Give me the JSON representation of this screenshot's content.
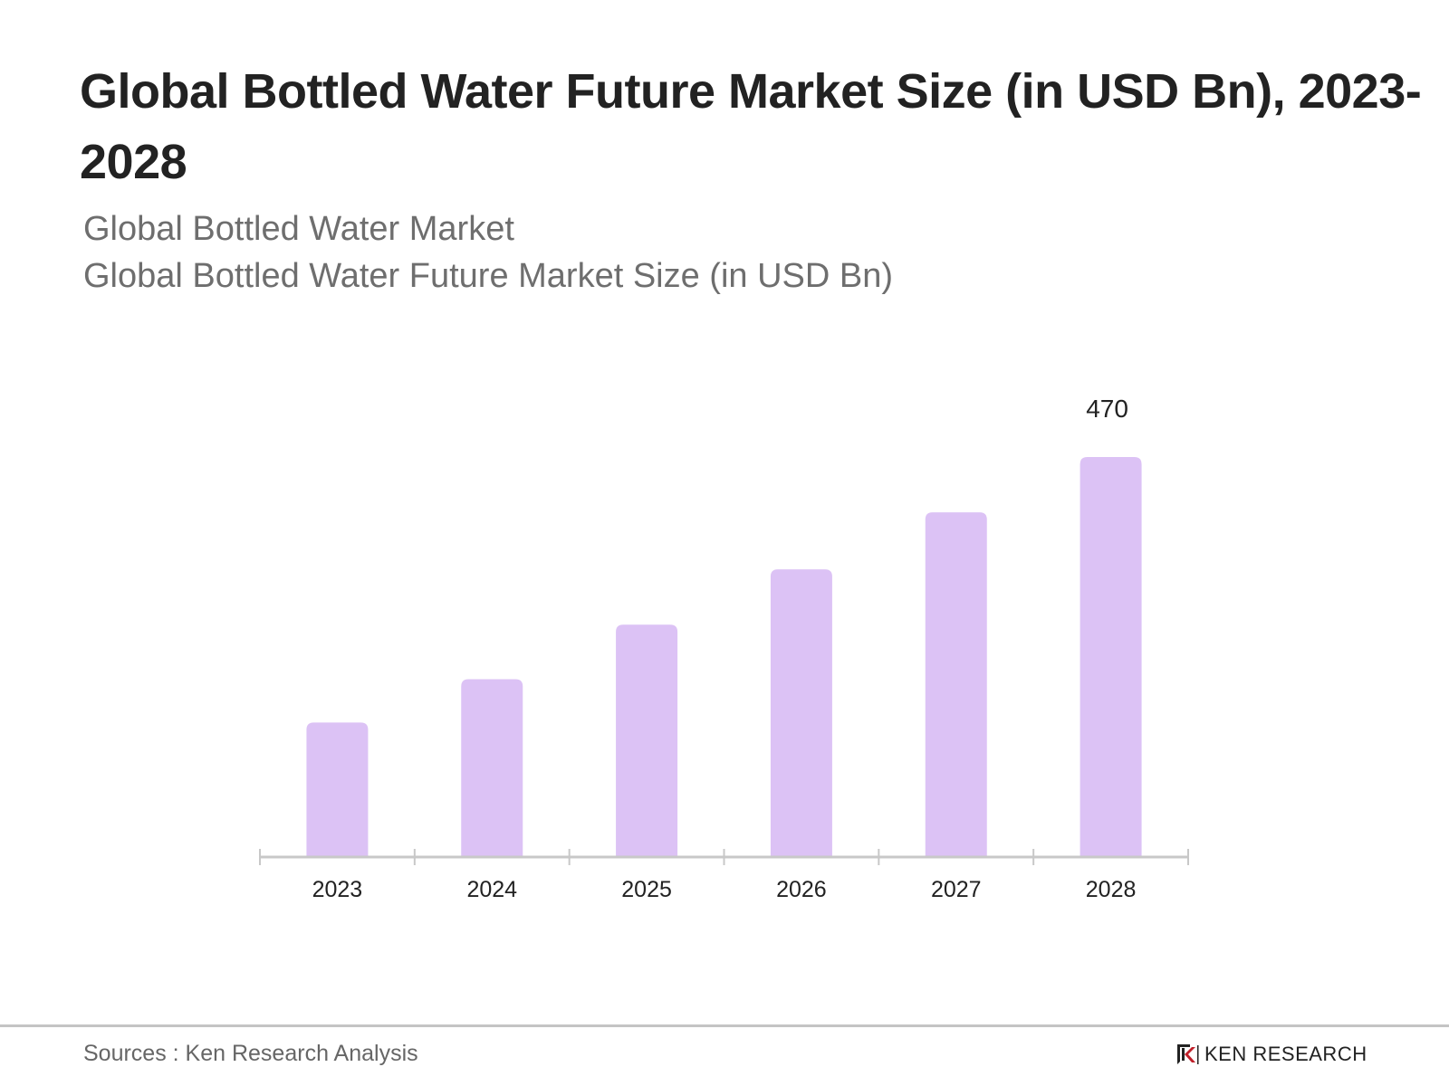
{
  "header": {
    "title": "Global Bottled Water Future Market Size (in USD Bn), 2023-2028",
    "subtitle_1": "Global Bottled Water Market",
    "subtitle_2": "Global Bottled Water Future Market Size (in USD Bn)"
  },
  "chart_data": {
    "type": "bar",
    "title": "Global Bottled Water Future Market Size (in USD Bn), 2023-2028",
    "xlabel": "",
    "ylabel": "",
    "categories": [
      "2023",
      "2024",
      "2025",
      "2026",
      "2027",
      "2028"
    ],
    "values": [
      158,
      209,
      273,
      338,
      405,
      470
    ],
    "data_labels": {
      "2028": "470"
    },
    "ylim": [
      0,
      470
    ],
    "grid": false,
    "bar_color": "#dcc2f5",
    "axis_color": "#c8c8c8"
  },
  "footer": {
    "source": "Sources : Ken Research Analysis",
    "logo_text": "KEN RESEARCH"
  }
}
